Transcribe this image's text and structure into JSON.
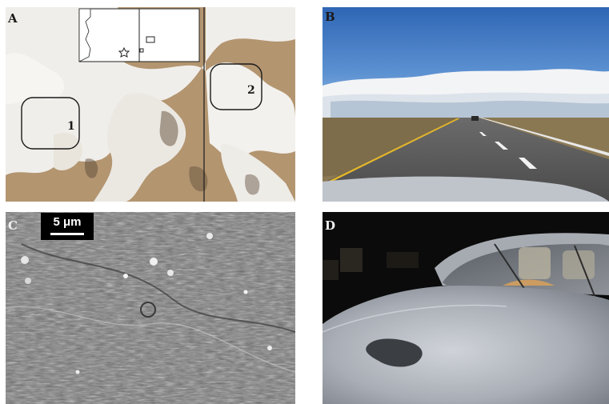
{
  "panels": {
    "a": {
      "label": "A",
      "region_1": "1",
      "region_2": "2"
    },
    "b": {
      "label": "B"
    },
    "c": {
      "label": "C",
      "scale_bar": "5 μm"
    },
    "d": {
      "label": "D"
    }
  },
  "colors": {
    "sky_blue": "#3f78c2",
    "desert_tan": "#b0926a",
    "snow_white": "#f2f2f2",
    "sem_gray": "#7a7a7a",
    "car_silver": "#b9bdc4",
    "night": "#0c0c0c"
  }
}
